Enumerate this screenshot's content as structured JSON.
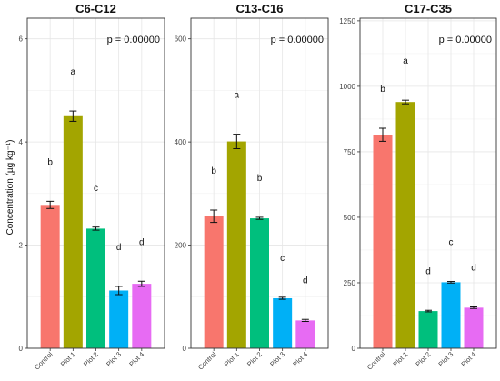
{
  "chart_data": {
    "type": "bar",
    "ylabel": "Concentration (µg kg⁻¹)",
    "categories": [
      "Control",
      "Plot 1",
      "Plot 2",
      "Plot 3",
      "Plot 4"
    ],
    "colors": [
      "#F8766D",
      "#A3A500",
      "#00BF7D",
      "#00B0F6",
      "#E76BF3"
    ],
    "panels": [
      {
        "title": "C6-C12",
        "p_label": "p = 0.00000",
        "ylim": [
          0,
          6.4
        ],
        "yticks": [
          0,
          2,
          4,
          6
        ],
        "ytick_labels": [
          "0",
          "2",
          "4",
          "6"
        ],
        "values": [
          2.78,
          4.5,
          2.32,
          1.12,
          1.25
        ],
        "errors": [
          0.07,
          0.1,
          0.03,
          0.08,
          0.05
        ],
        "letters": [
          "b",
          "a",
          "c",
          "d",
          "d"
        ]
      },
      {
        "title": "C13-C16",
        "p_label": "p = 0.00000",
        "ylim": [
          0,
          640
        ],
        "yticks": [
          0,
          200,
          400,
          600
        ],
        "ytick_labels": [
          "0",
          "200",
          "400",
          "600"
        ],
        "values": [
          256,
          401,
          252,
          97,
          54
        ],
        "errors": [
          12,
          14,
          2,
          2,
          2
        ],
        "letters": [
          "b",
          "a",
          "b",
          "c",
          "d"
        ]
      },
      {
        "title": "C17-C35",
        "p_label": "p = 0.00000",
        "ylim": [
          0,
          1260
        ],
        "yticks": [
          0,
          250,
          500,
          750,
          1000,
          1250
        ],
        "ytick_labels": [
          "0",
          "250",
          "500",
          "750",
          "1000",
          "1250"
        ],
        "values": [
          815,
          940,
          142,
          252,
          155
        ],
        "errors": [
          25,
          7,
          3,
          3,
          3
        ],
        "letters": [
          "b",
          "a",
          "d",
          "c",
          "d"
        ]
      }
    ]
  }
}
